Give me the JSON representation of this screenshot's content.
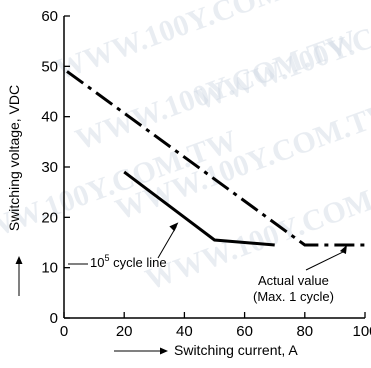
{
  "watermark": "WWW.100Y.COM.TW",
  "chart_data": {
    "type": "line",
    "title": "",
    "xlabel": "Switching current, A",
    "ylabel": "Switching voltage, VDC",
    "xlim": [
      0,
      100
    ],
    "ylim": [
      0,
      60
    ],
    "x_ticks": [
      "0",
      "20",
      "40",
      "60",
      "80",
      "100"
    ],
    "y_ticks": [
      "0",
      "10",
      "20",
      "30",
      "40",
      "50",
      "60"
    ],
    "grid": false,
    "legend": "none",
    "series": [
      {
        "name": "Actual value (Max. 1 cycle)",
        "style": "dash-dot",
        "points": [
          [
            1,
            49
          ],
          [
            80,
            14.5
          ],
          [
            100,
            14.5
          ]
        ]
      },
      {
        "name": "10^5 cycle line",
        "style": "solid",
        "points": [
          [
            20,
            29
          ],
          [
            40,
            20
          ],
          [
            50,
            15.5
          ],
          [
            70,
            14.5
          ]
        ]
      }
    ],
    "annotations": [
      {
        "id": "cycle-line",
        "text_base": "10",
        "text_sup": "5",
        "text_rest": " cycle line",
        "target": [
          38,
          19
        ]
      },
      {
        "id": "actual-value",
        "line1": "Actual value",
        "line2": "(Max. 1 cycle)",
        "target": [
          94,
          14.5
        ]
      }
    ]
  }
}
